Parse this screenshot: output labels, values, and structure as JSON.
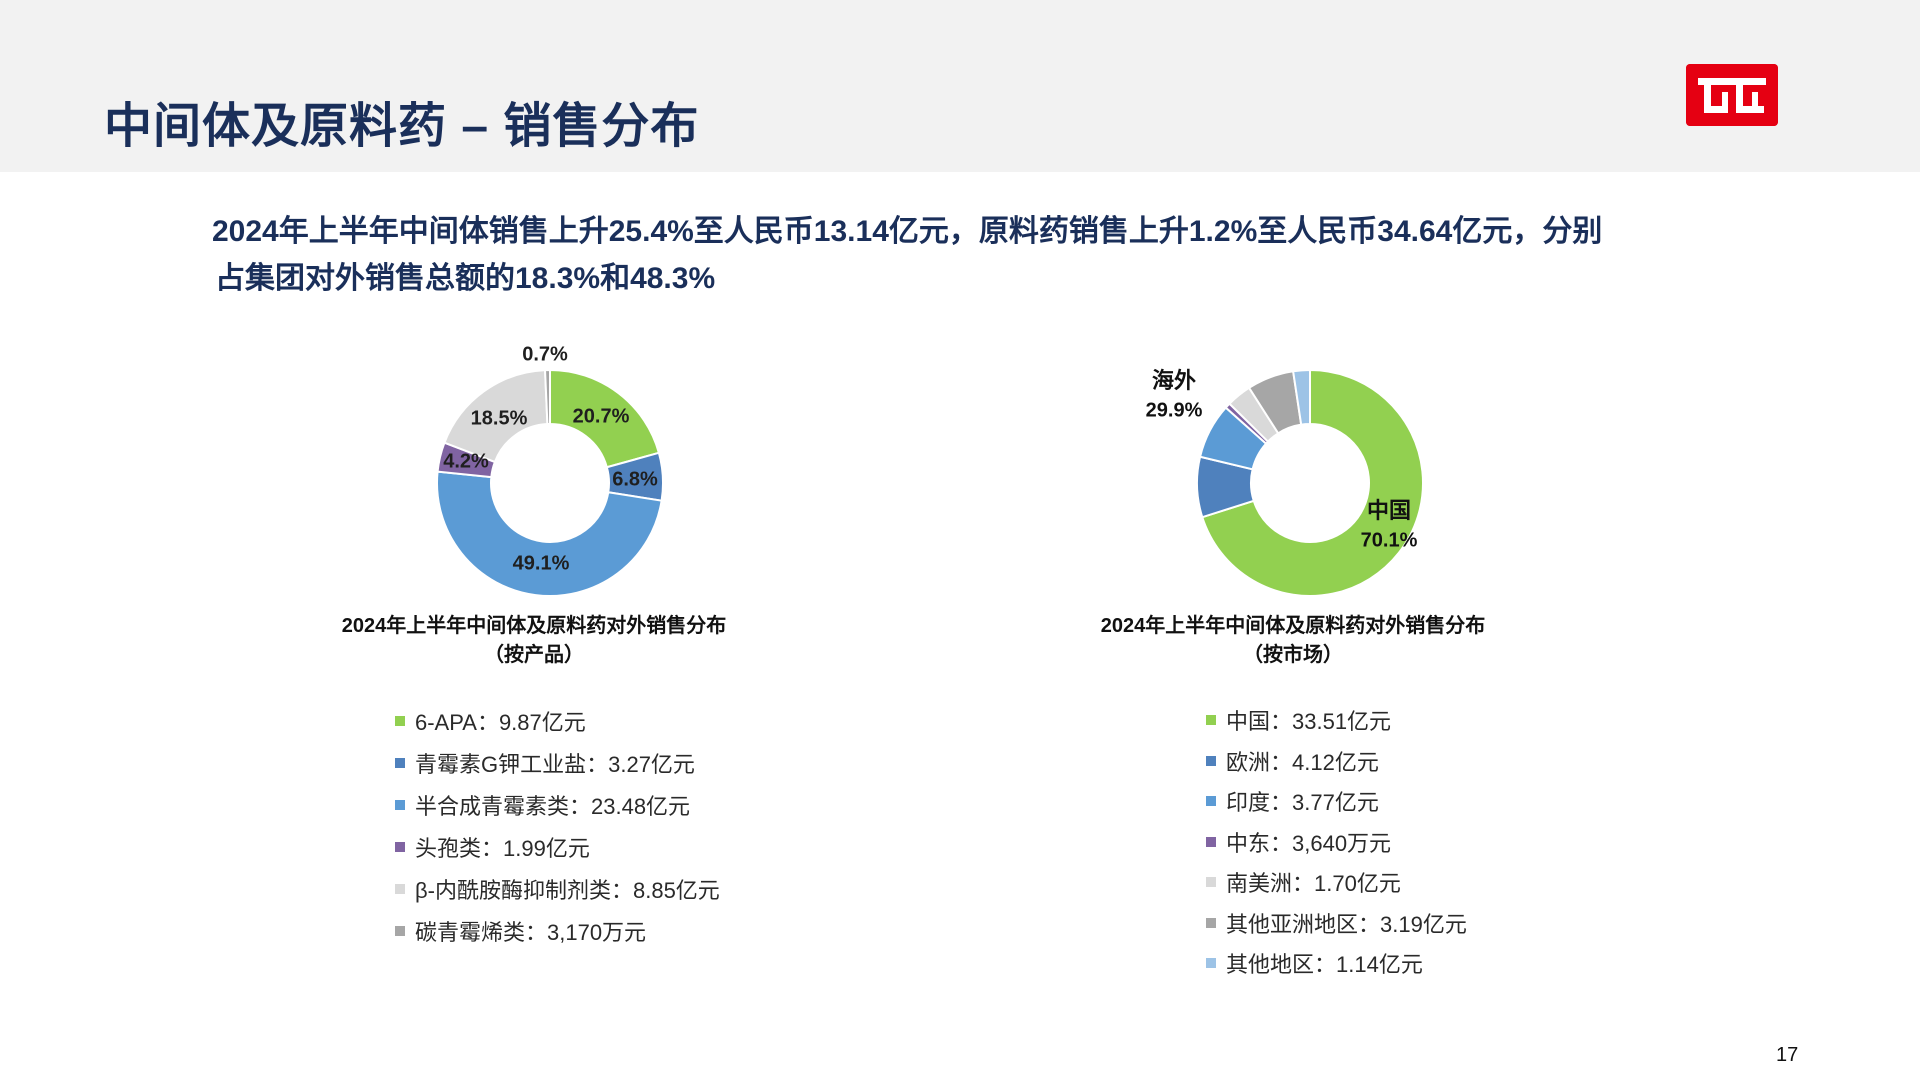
{
  "header": {
    "title": "中间体及原料药 – 销售分布",
    "logo_name": "company-logo"
  },
  "summary": {
    "line1": "2024年上半年中间体销售上升25.4%至人民币13.14亿元，原料药销售上升1.2%至人民币34.64亿元，分别",
    "line2": "占集团对外销售总额的18.3%和48.3%"
  },
  "page_number": "17",
  "chart_data": [
    {
      "type": "pie",
      "donut": true,
      "title": "2024年上半年中间体及原料药对外销售分布",
      "subtitle": "（按产品）",
      "unit": "%",
      "slices": [
        {
          "name": "6-APA",
          "value": 20.7,
          "label": "20.7%",
          "color": "#92d050",
          "legend": "6-APA：9.87亿元"
        },
        {
          "name": "青霉素G钾工业盐",
          "value": 6.8,
          "label": "6.8%",
          "color": "#4f81bd",
          "legend": "青霉素G钾工业盐：3.27亿元"
        },
        {
          "name": "半合成青霉素类",
          "value": 49.1,
          "label": "49.1%",
          "color": "#5b9bd5",
          "legend": "半合成青霉素类：23.48亿元"
        },
        {
          "name": "头孢类",
          "value": 4.2,
          "label": "4.2%",
          "color": "#8064a2",
          "legend": "头孢类：1.99亿元"
        },
        {
          "name": "β-内酰胺酶抑制剂类",
          "value": 18.5,
          "label": "18.5%",
          "color": "#d9d9d9",
          "legend": "β-内酰胺酶抑制剂类：8.85亿元"
        },
        {
          "name": "碳青霉烯类",
          "value": 0.7,
          "label": "0.7%",
          "color": "#a6a6a6",
          "legend": "碳青霉烯类：3,170万元"
        }
      ]
    },
    {
      "type": "pie",
      "donut": true,
      "title": "2024年上半年中间体及原料药对外销售分布",
      "subtitle": "（按市场）",
      "unit": "%",
      "group_labels": [
        {
          "name": "海外",
          "value": "29.9%"
        },
        {
          "name": "中国",
          "value": "70.1%"
        }
      ],
      "slices": [
        {
          "name": "中国",
          "value": 33.51,
          "color": "#92d050",
          "legend": "中国：33.51亿元"
        },
        {
          "name": "欧洲",
          "value": 4.12,
          "color": "#4f81bd",
          "legend": "欧洲：4.12亿元"
        },
        {
          "name": "印度",
          "value": 3.77,
          "color": "#5b9bd5",
          "legend": "印度：3.77亿元"
        },
        {
          "name": "中东",
          "value": 0.364,
          "color": "#8064a2",
          "legend": "中东：3,640万元"
        },
        {
          "name": "南美洲",
          "value": 1.7,
          "color": "#d9d9d9",
          "legend": "南美洲：1.70亿元"
        },
        {
          "name": "其他亚洲地区",
          "value": 3.19,
          "color": "#a6a6a6",
          "legend": "其他亚洲地区：3.19亿元"
        },
        {
          "name": "其他地区",
          "value": 1.14,
          "color": "#9dc3e6",
          "legend": "其他地区：1.14亿元"
        }
      ]
    }
  ]
}
